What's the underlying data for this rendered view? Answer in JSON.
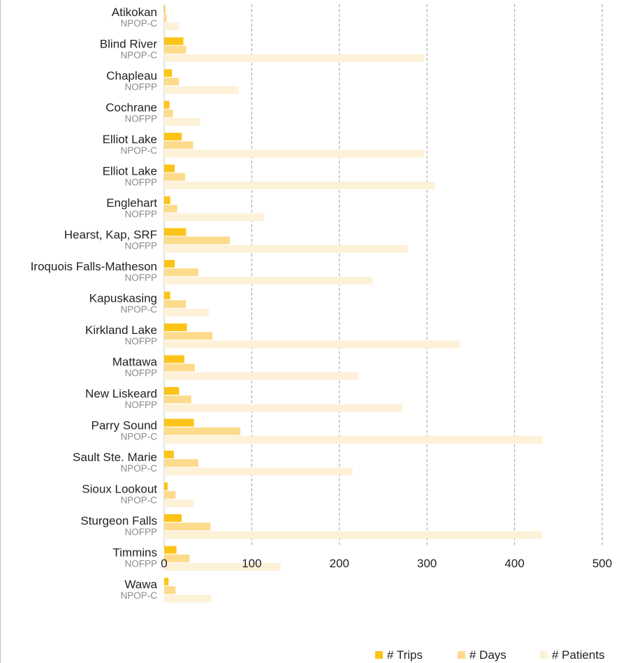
{
  "chart_data": {
    "type": "bar",
    "orientation": "horizontal",
    "title": "",
    "xlabel": "",
    "ylabel": "",
    "xlim": [
      0,
      500
    ],
    "xticks": [
      0,
      100,
      200,
      300,
      400,
      500
    ],
    "grid": "vertical-dashed",
    "legend_position": "bottom-right",
    "categories": [
      {
        "name": "Atikokan",
        "program": "NPOP-C"
      },
      {
        "name": "Blind River",
        "program": "NPOP-C"
      },
      {
        "name": "Chapleau",
        "program": "NOFPP"
      },
      {
        "name": "Cochrane",
        "program": "NOFPP"
      },
      {
        "name": "Elliot Lake",
        "program": "NPOP-C"
      },
      {
        "name": "Elliot Lake",
        "program": "NOFPP"
      },
      {
        "name": "Englehart",
        "program": "NOFPP"
      },
      {
        "name": "Hearst, Kap, SRF",
        "program": "NOFPP"
      },
      {
        "name": "Iroquois Falls-Matheson",
        "program": "NOFPP"
      },
      {
        "name": "Kapuskasing",
        "program": "NPOP-C"
      },
      {
        "name": "Kirkland Lake",
        "program": "NOFPP"
      },
      {
        "name": "Mattawa",
        "program": "NOFPP"
      },
      {
        "name": "New Liskeard",
        "program": "NOFPP"
      },
      {
        "name": "Parry Sound",
        "program": "NPOP-C"
      },
      {
        "name": "Sault Ste. Marie",
        "program": "NPOP-C"
      },
      {
        "name": "Sioux Lookout",
        "program": "NPOP-C"
      },
      {
        "name": "Sturgeon Falls",
        "program": "NOFPP"
      },
      {
        "name": "Timmins",
        "program": "NOFPP"
      },
      {
        "name": "Wawa",
        "program": "NPOP-C"
      }
    ],
    "series": [
      {
        "name": "# Trips",
        "color": "#fcc419",
        "values": [
          1,
          22,
          9,
          6,
          20,
          12,
          7,
          25,
          12,
          7,
          26,
          23,
          17,
          34,
          11,
          4,
          20,
          14,
          5
        ]
      },
      {
        "name": "# Days",
        "color": "#fddb8c",
        "values": [
          3,
          25,
          17,
          10,
          33,
          24,
          15,
          75,
          39,
          25,
          55,
          35,
          31,
          87,
          39,
          13,
          53,
          29,
          13
        ]
      },
      {
        "name": "# Patients",
        "color": "#fdf1d8",
        "values": [
          17,
          297,
          85,
          41,
          297,
          309,
          114,
          278,
          238,
          51,
          338,
          222,
          272,
          432,
          215,
          34,
          431,
          133,
          54
        ]
      }
    ]
  }
}
